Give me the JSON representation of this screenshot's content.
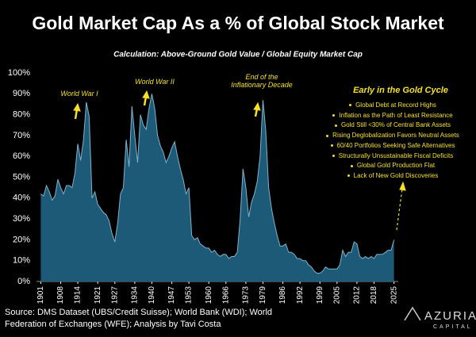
{
  "chart_data": {
    "type": "area",
    "title": "Gold Market Cap As a % of Global Stock Market",
    "subtitle": "Calculation: Above-Ground Gold Value / Global Equity Market Cap",
    "color": "#1d5a78",
    "line_color": "#7fb3cc",
    "x": [
      1901,
      1902,
      1903,
      1904,
      1905,
      1906,
      1907,
      1908,
      1909,
      1910,
      1911,
      1912,
      1913,
      1914,
      1915,
      1916,
      1917,
      1918,
      1919,
      1920,
      1921,
      1922,
      1923,
      1924,
      1925,
      1926,
      1927,
      1928,
      1929,
      1930,
      1931,
      1932,
      1933,
      1934,
      1935,
      1936,
      1937,
      1938,
      1939,
      1940,
      1941,
      1942,
      1943,
      1944,
      1945,
      1946,
      1947,
      1948,
      1949,
      1950,
      1951,
      1952,
      1953,
      1954,
      1955,
      1956,
      1957,
      1958,
      1959,
      1960,
      1961,
      1962,
      1963,
      1964,
      1965,
      1966,
      1967,
      1968,
      1969,
      1970,
      1971,
      1972,
      1973,
      1974,
      1975,
      1976,
      1977,
      1978,
      1979,
      1980,
      1981,
      1982,
      1983,
      1984,
      1985,
      1986,
      1987,
      1988,
      1989,
      1990,
      1991,
      1992,
      1993,
      1994,
      1995,
      1996,
      1997,
      1998,
      1999,
      2000,
      2001,
      2002,
      2003,
      2004,
      2005,
      2006,
      2007,
      2008,
      2009,
      2010,
      2011,
      2012,
      2013,
      2014,
      2015,
      2016,
      2017,
      2018,
      2019,
      2020,
      2021,
      2022,
      2023,
      2024,
      2025
    ],
    "values": [
      42,
      41,
      46,
      43,
      39,
      41,
      49,
      45,
      42,
      46,
      46,
      45,
      52,
      66,
      58,
      68,
      86,
      79,
      40,
      43,
      37,
      35,
      33,
      32,
      29,
      23,
      19,
      28,
      42,
      45,
      68,
      55,
      84,
      70,
      57,
      80,
      75,
      73,
      83,
      90,
      83,
      70,
      65,
      62,
      57,
      60,
      64,
      67,
      60,
      54,
      49,
      42,
      45,
      22,
      20,
      21,
      18,
      17,
      16,
      16,
      14,
      15,
      13,
      12,
      13,
      13,
      11,
      12,
      12,
      14,
      30,
      54,
      45,
      31,
      38,
      42,
      48,
      60,
      87,
      72,
      45,
      35,
      28,
      22,
      17,
      17,
      18,
      14,
      14,
      13,
      11,
      11,
      10,
      10,
      8,
      7,
      5,
      4,
      4,
      5,
      7,
      6,
      6,
      6,
      6,
      8,
      15,
      12,
      14,
      14,
      19,
      18,
      12,
      11,
      12,
      11,
      12,
      11,
      13,
      13,
      13,
      14,
      15,
      15,
      20
    ],
    "xlim": [
      1899.5,
      2026.5
    ],
    "xticks": [
      1901,
      1908,
      1914,
      1921,
      1927,
      1934,
      1940,
      1947,
      1953,
      1960,
      1966,
      1973,
      1979,
      1986,
      1992,
      1999,
      2005,
      2012,
      2018,
      2025
    ],
    "ylim": [
      0,
      100
    ],
    "yticks": [
      {
        "value": 0,
        "label": "0%"
      },
      {
        "value": 10,
        "label": "10%"
      },
      {
        "value": 20,
        "label": "20%"
      },
      {
        "value": 30,
        "label": "30%"
      },
      {
        "value": 40,
        "label": "40%"
      },
      {
        "value": 50,
        "label": "50%"
      },
      {
        "value": 60,
        "label": "60%"
      },
      {
        "value": 70,
        "label": "70%"
      },
      {
        "value": 80,
        "label": "80%"
      },
      {
        "value": 90,
        "label": "90%"
      },
      {
        "value": 100,
        "label": "100%"
      }
    ],
    "annotations": [
      "World War I",
      "World War II",
      "End of the Inflationary Decade"
    ],
    "cycle_title": "Early in the Gold Cycle",
    "cycle_points": [
      "Global Debt at Record Highs",
      "Inflation as the Path of Least Resistance",
      "Gold Still <30% of Central Bank Assets",
      "Rising Deglobalization Favors Neutral Assets",
      "60/40 Portfolios Seeking Safe Alternatives",
      "Structurally Unsustainable Fiscal Deficits",
      "Global Gold Production Flat",
      "Lack of New Gold Discoveries"
    ],
    "source": "Source: DMS Dataset (UBS/Credit Suisse); World Bank (WDI); World Federation of Exchanges (WFE); Analysis by Tavi Costa",
    "logo": "AZURIA",
    "logo_sub": "CAPITAL"
  }
}
